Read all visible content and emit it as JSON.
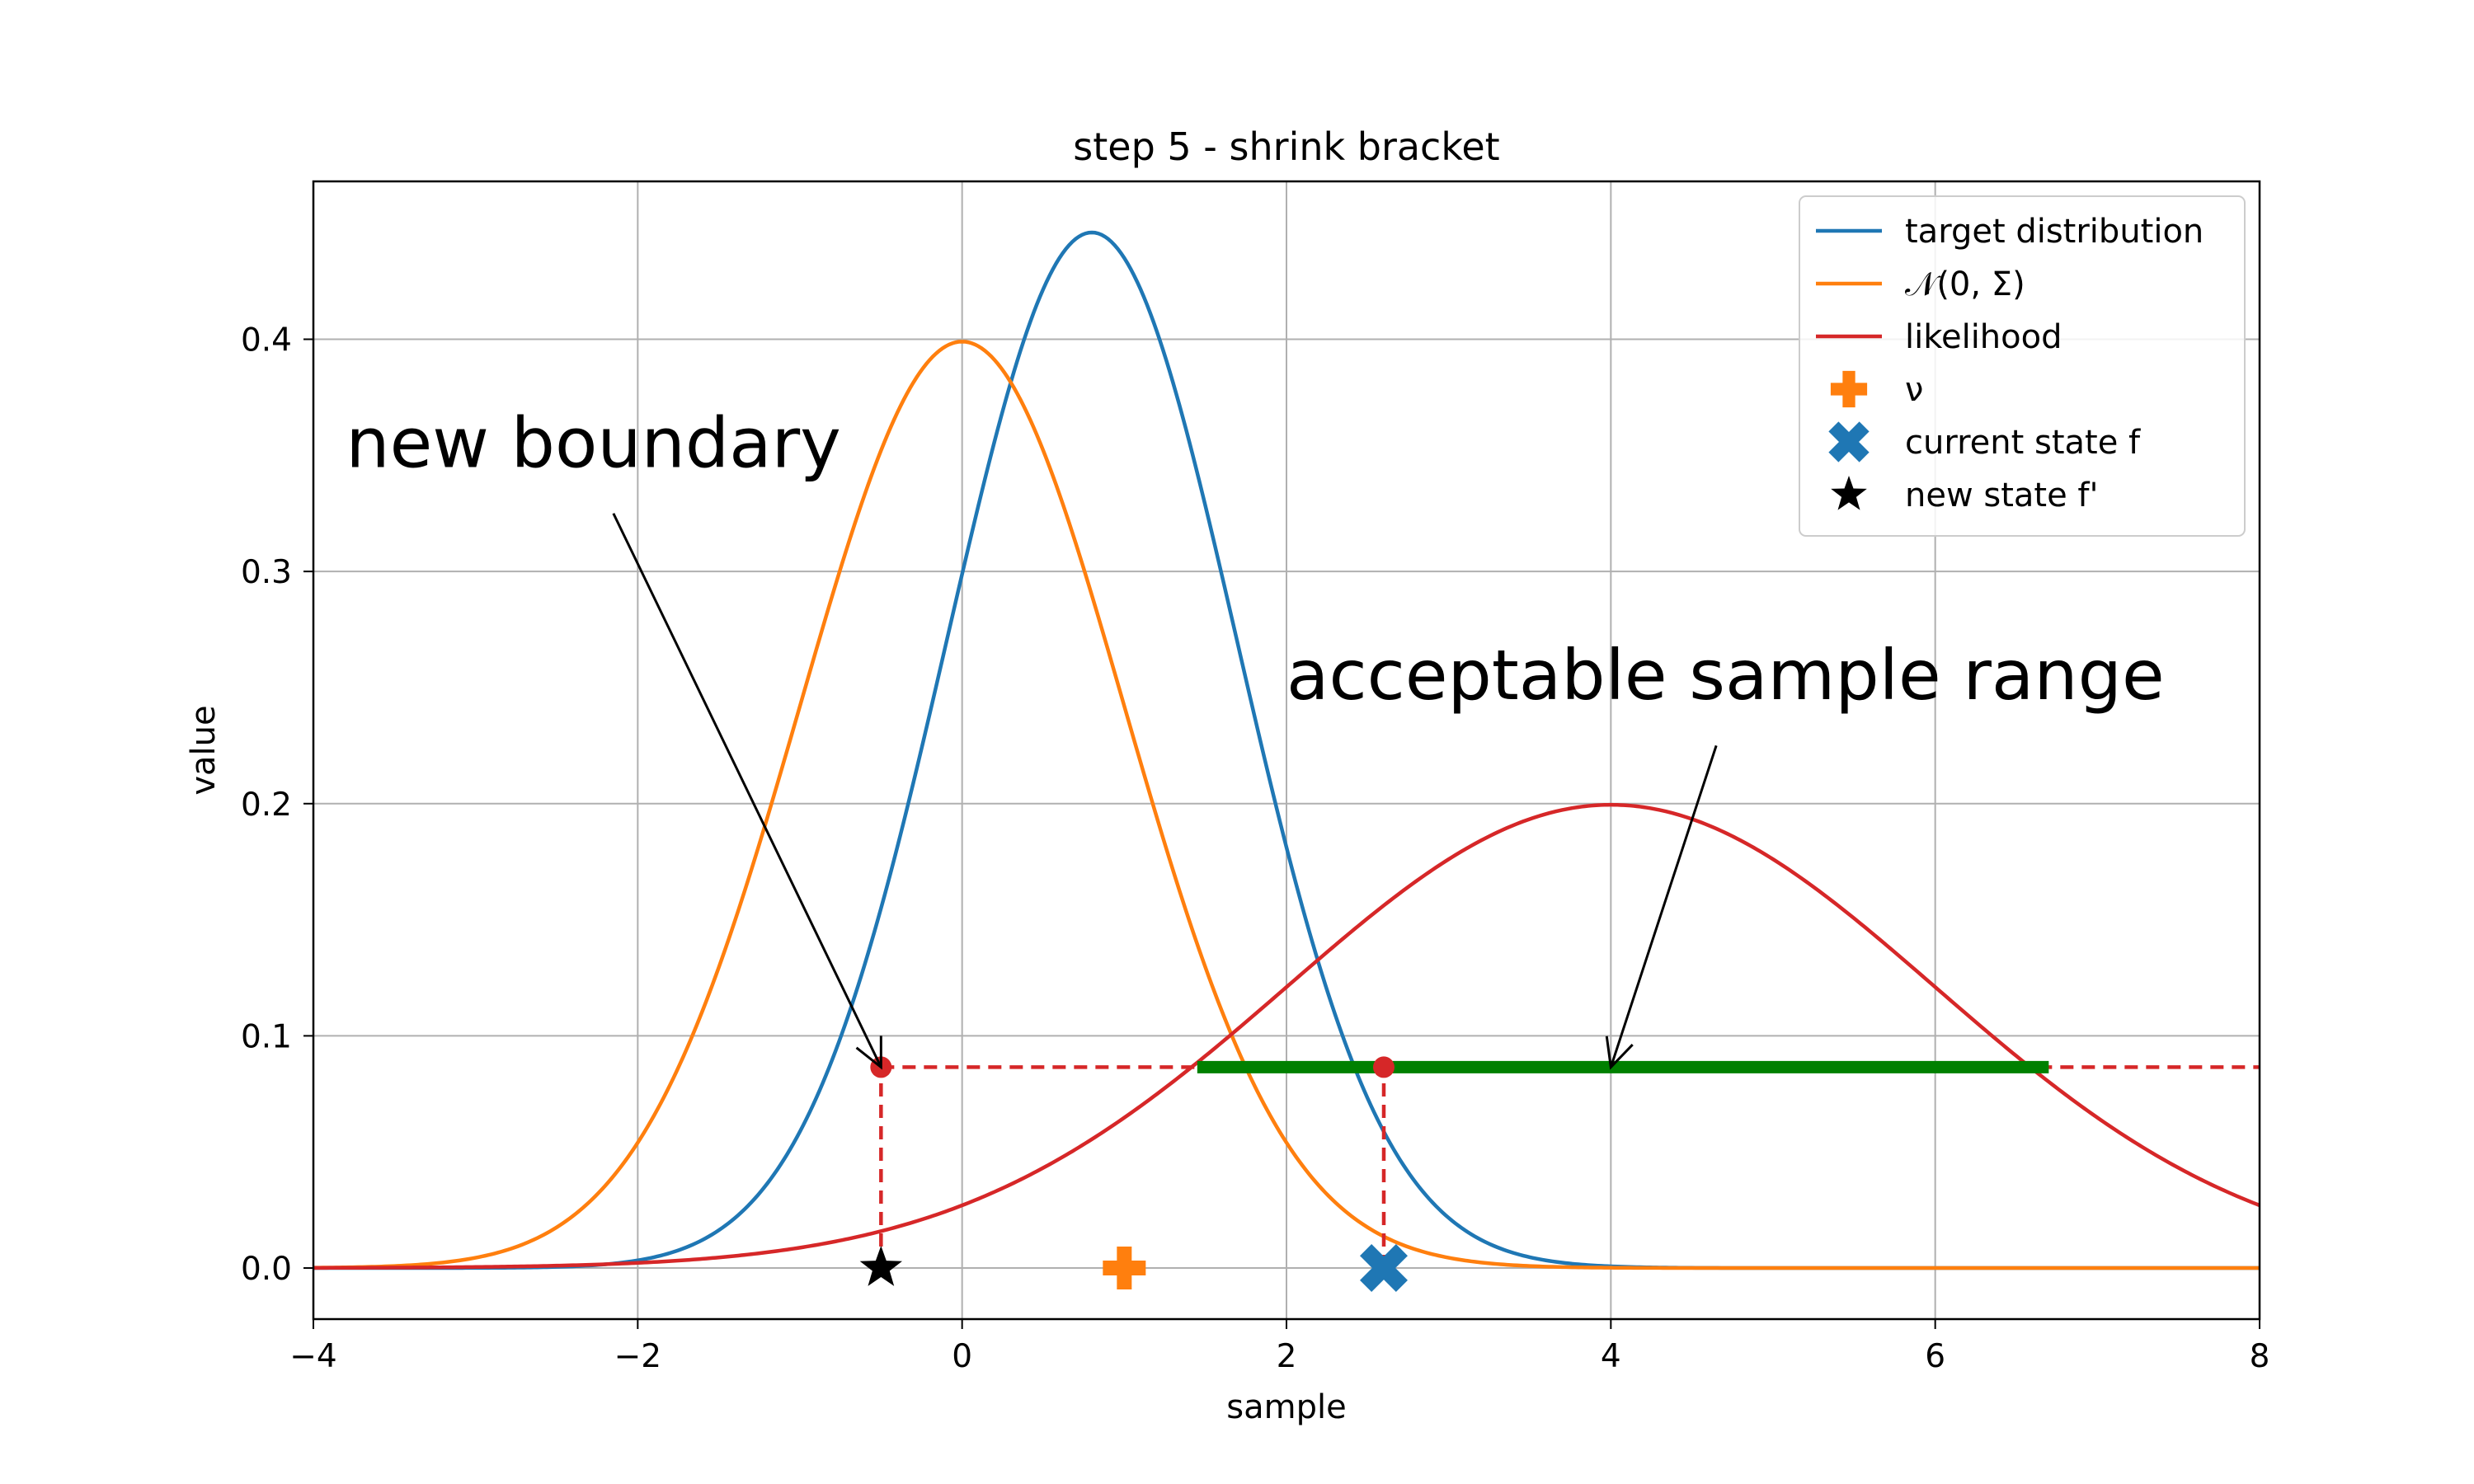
{
  "chart_data": {
    "type": "line",
    "title": "step 5 - shrink bracket",
    "xlabel": "sample",
    "ylabel": "value",
    "xlim": [
      -4,
      8
    ],
    "ylim": [
      -0.022,
      0.468
    ],
    "xticks": [
      -4,
      -2,
      0,
      2,
      4,
      6,
      8
    ],
    "xtick_labels": [
      "−4",
      "−2",
      "0",
      "2",
      "4",
      "6",
      "8"
    ],
    "yticks": [
      0.0,
      0.1,
      0.2,
      0.3,
      0.4
    ],
    "ytick_labels": [
      "0.0",
      "0.1",
      "0.2",
      "0.3",
      "0.4"
    ],
    "grid": true,
    "legend_position": "top-right",
    "series": [
      {
        "name": "target distribution",
        "color": "#1f77b4",
        "kind": "gaussian",
        "mean": 0.8,
        "std": 0.894,
        "peak": 0.446
      },
      {
        "name": "𝒩(0, Σ)",
        "color": "#ff7f0e",
        "kind": "gaussian",
        "mean": 0.0,
        "std": 1.0,
        "peak": 0.399
      },
      {
        "name": "likelihood",
        "color": "#d62728",
        "kind": "gaussian",
        "mean": 4.0,
        "std": 2.0,
        "peak": 0.1995
      }
    ],
    "markers": [
      {
        "name": "ν",
        "color": "#ff7f0e",
        "shape": "plus",
        "x": 1.0,
        "y": 0.0
      },
      {
        "name": "current state f",
        "color": "#1f77b4",
        "shape": "x",
        "x": 2.6,
        "y": 0.0
      },
      {
        "name": "new state f'",
        "color": "#000000",
        "shape": "star",
        "x": -0.5,
        "y": 0.0
      }
    ],
    "threshold": {
      "y": 0.0865,
      "x_start": -0.5,
      "x_end": 8.0,
      "color": "#d62728",
      "style": "dashed"
    },
    "vertical_dashes": [
      {
        "x": -0.5,
        "y0": 0.0,
        "y1": 0.0865
      },
      {
        "x": 2.6,
        "y0": 0.0,
        "y1": 0.0865
      }
    ],
    "boundary_points": [
      {
        "x": -0.5,
        "y": 0.0865
      },
      {
        "x": 2.6,
        "y": 0.0865
      }
    ],
    "acceptable_range": {
      "x0": 1.45,
      "x1": 6.7,
      "y": 0.0865,
      "color": "#008000"
    },
    "annotations": [
      {
        "text": "new boundary",
        "text_x": -3.8,
        "text_y": 0.345,
        "arrow_from": [
          -2.15,
          0.325
        ],
        "arrow_to": [
          -0.5,
          0.0865
        ]
      },
      {
        "text": "acceptable sample range",
        "text_x": 2.0,
        "text_y": 0.245,
        "arrow_from": [
          4.65,
          0.225
        ],
        "arrow_to": [
          4.0,
          0.0865
        ]
      }
    ]
  }
}
